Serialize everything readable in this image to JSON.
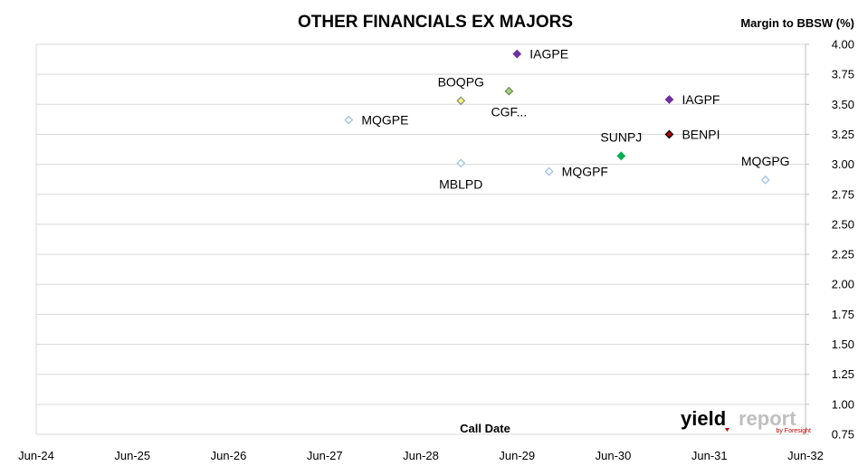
{
  "chart_data": {
    "type": "scatter",
    "title": "OTHER FINANCIALS EX MAJORS",
    "ylabel": "Margin to BBSW (%)",
    "xlabel": "Call Date",
    "ylim": [
      0.75,
      4.0
    ],
    "yticks": [
      "4.00",
      "3.75",
      "3.50",
      "3.25",
      "3.00",
      "2.75",
      "2.50",
      "2.25",
      "2.00",
      "1.75",
      "1.50",
      "1.25",
      "1.00",
      "0.75"
    ],
    "xticks": [
      "Jun-24",
      "Jun-25",
      "Jun-26",
      "Jun-27",
      "Jun-28",
      "Jun-29",
      "Jun-30",
      "Jun-31",
      "Jun-32"
    ],
    "grid": "horizontal",
    "legend": "none",
    "points": [
      {
        "label": "MQGPE",
        "x": "Sep-27",
        "y": 3.37,
        "color": "#ffffff",
        "stroke": "#9dc3e6",
        "label_pos": "right"
      },
      {
        "label": "IAGPE",
        "x": "Jun-29",
        "y": 3.92,
        "color": "#7030a0",
        "stroke": "#7030a0",
        "label_pos": "right"
      },
      {
        "label": "BOQPG",
        "x": "Nov-28",
        "y": 3.53,
        "color": "#ffff66",
        "stroke": "#8c8c8c",
        "label_pos": "above"
      },
      {
        "label": "CGF...",
        "x": "May-29",
        "y": 3.61,
        "color": "#a9d18e",
        "stroke": "#6b8e4e",
        "label_pos": "below"
      },
      {
        "label": "IAGPF",
        "x": "Jan-31",
        "y": 3.54,
        "color": "#7030a0",
        "stroke": "#7030a0",
        "label_pos": "right"
      },
      {
        "label": "BENPI",
        "x": "Jan-31",
        "y": 3.25,
        "color": "#c00000",
        "stroke": "#000000",
        "label_pos": "right"
      },
      {
        "label": "SUNPJ",
        "x": "Jul-30",
        "y": 3.07,
        "color": "#00b050",
        "stroke": "#00b050",
        "label_pos": "above"
      },
      {
        "label": "MBLPD",
        "x": "Nov-28",
        "y": 3.01,
        "color": "#ffffff",
        "stroke": "#9dc3e6",
        "label_pos": "below"
      },
      {
        "label": "MQGPF",
        "x": "Oct-29",
        "y": 2.94,
        "color": "#ffffff",
        "stroke": "#9dc3e6",
        "label_pos": "right"
      },
      {
        "label": "MQGPG",
        "x": "Jan-32",
        "y": 2.87,
        "color": "#ffffff",
        "stroke": "#9dc3e6",
        "label_pos": "above"
      }
    ]
  },
  "branding": {
    "logo_text_main": "yield",
    "logo_text_accent": "report",
    "logo_sub": "by Foresight",
    "colors": {
      "main": "#000000",
      "accent": "#bfbfbf",
      "sub": "#c00000"
    }
  }
}
